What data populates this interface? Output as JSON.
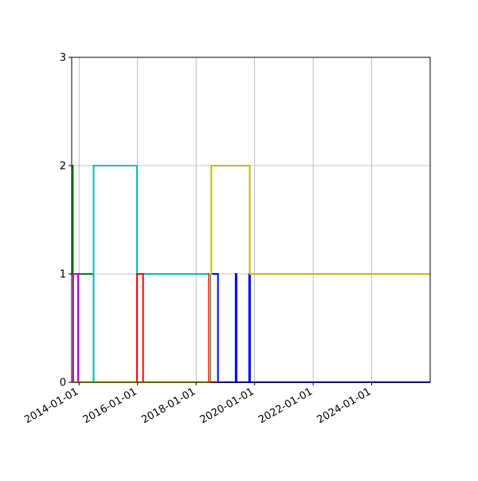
{
  "chart_data": {
    "type": "line",
    "step": "post",
    "x_axis": {
      "kind": "date",
      "range": [
        "2013-10-01",
        "2026-01-01"
      ],
      "ticks": [
        "2014-01-01",
        "2016-01-01",
        "2018-01-01",
        "2020-01-01",
        "2022-01-01",
        "2024-01-01"
      ],
      "tick_rotation_deg": 30
    },
    "y_axis": {
      "range": [
        0,
        3
      ],
      "ticks": [
        0,
        1,
        2,
        3
      ]
    },
    "grid": true,
    "legend": "none",
    "series": [
      {
        "color": "#008000",
        "points": [
          {
            "x": "2013-10-01",
            "y": 2
          },
          {
            "x": "2013-10-15",
            "y": 1
          },
          {
            "x": "2014-07-01",
            "y": 0
          },
          {
            "x": "2026-01-01",
            "y": 0
          }
        ]
      },
      {
        "color": "#bf00bf",
        "points": [
          {
            "x": "2013-10-01",
            "y": 0
          },
          {
            "x": "2013-10-20",
            "y": 1
          },
          {
            "x": "2013-12-20",
            "y": 0
          },
          {
            "x": "2026-01-01",
            "y": 0
          }
        ]
      },
      {
        "color": "#00bfbf",
        "points": [
          {
            "x": "2013-10-01",
            "y": 0
          },
          {
            "x": "2014-07-01",
            "y": 2
          },
          {
            "x": "2015-12-25",
            "y": 1
          },
          {
            "x": "2018-06-01",
            "y": 1
          },
          {
            "x": "2018-06-15",
            "y": 0
          },
          {
            "x": "2026-01-01",
            "y": 0
          }
        ]
      },
      {
        "color": "#ff0000",
        "points": [
          {
            "x": "2013-10-01",
            "y": 0
          },
          {
            "x": "2015-12-25",
            "y": 1
          },
          {
            "x": "2016-03-10",
            "y": 0
          },
          {
            "x": "2018-06-10",
            "y": 1
          },
          {
            "x": "2018-06-20",
            "y": 0
          },
          {
            "x": "2026-01-01",
            "y": 0
          }
        ]
      },
      {
        "color": "#0000ff",
        "points": [
          {
            "x": "2013-10-01",
            "y": 0
          },
          {
            "x": "2018-06-25",
            "y": 1
          },
          {
            "x": "2018-10-01",
            "y": 0
          },
          {
            "x": "2019-05-10",
            "y": 1
          },
          {
            "x": "2019-05-20",
            "y": 0
          },
          {
            "x": "2019-10-25",
            "y": 1
          },
          {
            "x": "2019-11-05",
            "y": 0
          },
          {
            "x": "2026-01-01",
            "y": 0
          }
        ]
      },
      {
        "color": "#bfbf00",
        "points": [
          {
            "x": "2013-10-01",
            "y": 0
          },
          {
            "x": "2018-06-20",
            "y": 1
          },
          {
            "x": "2018-07-10",
            "y": 2
          },
          {
            "x": "2019-11-01",
            "y": 1
          },
          {
            "x": "2026-01-01",
            "y": 1
          }
        ]
      }
    ]
  }
}
